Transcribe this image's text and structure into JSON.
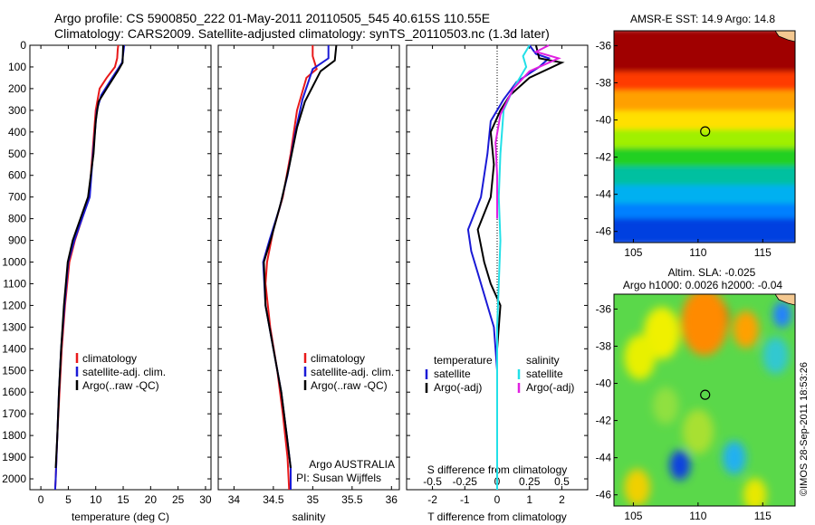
{
  "header": {
    "line1": "Argo profile: CS 5900850_222 01-May-2011 20110505_545 40.615S 110.55E",
    "line2": "Climatology: CARS2009. Satellite-adjusted climatology: synTS_20110503.nc (1.3d later)"
  },
  "footer_right": "©IMOS 28-Sep-2011 18:53:26",
  "colors": {
    "climatology": "#e8191a",
    "satellite": "#1a1ad6",
    "argo": "#000000",
    "cyan": "#22e0e8",
    "magenta": "#e020e0"
  },
  "chart_data": [
    {
      "type": "line",
      "id": "temperature",
      "xlabel": "temperature (deg C)",
      "ylabel": "",
      "xlim": [
        -2,
        31
      ],
      "xticks": [
        0,
        5,
        10,
        15,
        20,
        25,
        30
      ],
      "ylim": [
        2050,
        0
      ],
      "yticks": [
        0,
        100,
        200,
        300,
        400,
        500,
        600,
        700,
        800,
        900,
        1000,
        1100,
        1200,
        1300,
        1400,
        1500,
        1600,
        1700,
        1800,
        1900,
        2000
      ],
      "y_reversed": true,
      "legend": {
        "position": "lower-middle",
        "entries": [
          "climatology",
          "satellite-adj. clim.",
          "Argo(..raw -QC)"
        ]
      },
      "series": [
        {
          "name": "climatology",
          "color": "#e8191a",
          "points": [
            [
              14.1,
              0
            ],
            [
              14.0,
              20
            ],
            [
              13.9,
              60
            ],
            [
              13.5,
              100
            ],
            [
              12.0,
              150
            ],
            [
              10.7,
              200
            ],
            [
              10.0,
              300
            ],
            [
              9.4,
              500
            ],
            [
              8.8,
              700
            ],
            [
              7.5,
              800
            ],
            [
              6.2,
              900
            ],
            [
              5.2,
              1000
            ],
            [
              4.4,
              1200
            ],
            [
              3.8,
              1400
            ],
            [
              3.4,
              1600
            ],
            [
              3.0,
              1800
            ],
            [
              2.7,
              2000
            ],
            [
              2.6,
              2050
            ]
          ]
        },
        {
          "name": "satellite-adj. clim.",
          "color": "#1a1ad6",
          "points": [
            [
              15.2,
              0
            ],
            [
              15.0,
              40
            ],
            [
              14.8,
              80
            ],
            [
              13.0,
              150
            ],
            [
              11.0,
              230
            ],
            [
              10.2,
              300
            ],
            [
              9.5,
              500
            ],
            [
              8.9,
              700
            ],
            [
              7.5,
              800
            ],
            [
              6.1,
              900
            ],
            [
              5.0,
              1000
            ],
            [
              4.3,
              1200
            ],
            [
              3.7,
              1400
            ],
            [
              3.3,
              1600
            ],
            [
              3.0,
              1800
            ],
            [
              2.7,
              2000
            ],
            [
              2.6,
              2050
            ]
          ]
        },
        {
          "name": "Argo(..raw -QC)",
          "color": "#000000",
          "points": [
            [
              15.0,
              0
            ],
            [
              14.9,
              80
            ],
            [
              14.0,
              120
            ],
            [
              12.0,
              200
            ],
            [
              10.5,
              260
            ],
            [
              10.0,
              350
            ],
            [
              9.6,
              500
            ],
            [
              8.6,
              700
            ],
            [
              7.2,
              800
            ],
            [
              5.8,
              900
            ],
            [
              4.9,
              1000
            ],
            [
              4.2,
              1200
            ],
            [
              3.7,
              1400
            ],
            [
              3.3,
              1600
            ],
            [
              3.0,
              1800
            ],
            [
              2.7,
              1950
            ]
          ]
        }
      ]
    },
    {
      "type": "line",
      "id": "salinity",
      "xlabel": "salinity",
      "ylabel": "",
      "xlim": [
        33.8,
        36.1
      ],
      "xticks": [
        34,
        34.5,
        35,
        35.5,
        36
      ],
      "ylim": [
        2050,
        0
      ],
      "y_reversed": true,
      "legend": {
        "position": "lower-right",
        "entries": [
          "climatology",
          "satellite-adj. clim.",
          "Argo(..raw -QC)"
        ]
      },
      "annotations": [
        "Argo AUSTRALIA",
        "PI: Susan Wijffels"
      ],
      "series": [
        {
          "name": "climatology",
          "color": "#e8191a",
          "points": [
            [
              35.0,
              0
            ],
            [
              35.0,
              50
            ],
            [
              35.05,
              110
            ],
            [
              34.92,
              150
            ],
            [
              34.8,
              300
            ],
            [
              34.72,
              500
            ],
            [
              34.62,
              700
            ],
            [
              34.5,
              850
            ],
            [
              34.42,
              1000
            ],
            [
              34.4,
              1100
            ],
            [
              34.46,
              1300
            ],
            [
              34.55,
              1500
            ],
            [
              34.62,
              1700
            ],
            [
              34.68,
              1900
            ],
            [
              34.7,
              2050
            ]
          ]
        },
        {
          "name": "satellite-adj. clim.",
          "color": "#1a1ad6",
          "points": [
            [
              35.2,
              0
            ],
            [
              35.2,
              60
            ],
            [
              35.0,
              110
            ],
            [
              34.87,
              250
            ],
            [
              34.78,
              400
            ],
            [
              34.68,
              600
            ],
            [
              34.58,
              750
            ],
            [
              34.45,
              900
            ],
            [
              34.37,
              1000
            ],
            [
              34.4,
              1200
            ],
            [
              34.5,
              1400
            ],
            [
              34.6,
              1600
            ],
            [
              34.67,
              1800
            ],
            [
              34.72,
              1950
            ],
            [
              34.72,
              2050
            ]
          ]
        },
        {
          "name": "Argo(..raw -QC)",
          "color": "#000000",
          "points": [
            [
              35.3,
              0
            ],
            [
              35.28,
              70
            ],
            [
              35.1,
              120
            ],
            [
              34.9,
              260
            ],
            [
              34.8,
              380
            ],
            [
              34.7,
              560
            ],
            [
              34.6,
              720
            ],
            [
              34.48,
              880
            ],
            [
              34.38,
              1000
            ],
            [
              34.4,
              1200
            ],
            [
              34.5,
              1400
            ],
            [
              34.6,
              1600
            ],
            [
              34.67,
              1800
            ],
            [
              34.72,
              1950
            ]
          ]
        }
      ]
    },
    {
      "type": "line",
      "id": "difference",
      "xlabel": "T difference from climatology",
      "xlabel_top": "S difference from climatology",
      "xlim": [
        -2.8,
        2.8
      ],
      "xticks": [
        -2,
        -1,
        0,
        1,
        2
      ],
      "xticks_top_labels": [
        "-0.5",
        "-0.25",
        "0",
        "0.25",
        "0.5"
      ],
      "xticks_top_values": [
        -2,
        -1,
        0,
        1,
        2
      ],
      "ylim": [
        2050,
        0
      ],
      "y_reversed": true,
      "legend": {
        "position": "lower",
        "temperature_title": "temperature",
        "salinity_title": "salinity",
        "entries": [
          "satellite",
          "Argo(-adj)",
          "satellite",
          "Argo(-adj)"
        ]
      },
      "series": [
        {
          "name": "satellite",
          "group": "temperature",
          "color": "#1a1ad6",
          "points": [
            [
              1.0,
              0
            ],
            [
              1.2,
              40
            ],
            [
              1.6,
              60
            ],
            [
              1.3,
              100
            ],
            [
              0.6,
              170
            ],
            [
              0.2,
              250
            ],
            [
              -0.2,
              350
            ],
            [
              -0.3,
              500
            ],
            [
              -0.5,
              700
            ],
            [
              -0.9,
              850
            ],
            [
              -0.8,
              950
            ],
            [
              -0.6,
              1050
            ],
            [
              -0.4,
              1150
            ],
            [
              -0.1,
              1300
            ],
            [
              0,
              1500
            ],
            [
              0,
              2050
            ]
          ]
        },
        {
          "name": "Argo(-adj)",
          "group": "temperature",
          "color": "#000000",
          "points": [
            [
              1.2,
              0
            ],
            [
              1.3,
              60
            ],
            [
              2.0,
              80
            ],
            [
              1.0,
              150
            ],
            [
              0.4,
              230
            ],
            [
              0.1,
              300
            ],
            [
              -0.2,
              400
            ],
            [
              -0.1,
              550
            ],
            [
              -0.2,
              700
            ],
            [
              -0.6,
              850
            ],
            [
              -0.4,
              1000
            ],
            [
              -0.2,
              1100
            ],
            [
              0.1,
              1200
            ],
            [
              0,
              1400
            ],
            [
              0,
              1950
            ]
          ]
        },
        {
          "name": "satellite",
          "group": "salinity",
          "color": "#22e0e8",
          "points": [
            [
              1.0,
              0
            ],
            [
              0.8,
              50
            ],
            [
              0.9,
              100
            ],
            [
              0.5,
              200
            ],
            [
              0.2,
              300
            ],
            [
              0.1,
              500
            ],
            [
              0.05,
              700
            ],
            [
              0.1,
              900
            ],
            [
              0.05,
              1100
            ],
            [
              0,
              1300
            ],
            [
              0,
              2050
            ]
          ]
        },
        {
          "name": "Argo(-adj)",
          "group": "salinity",
          "color": "#e020e0",
          "points": [
            [
              1.6,
              0
            ],
            [
              1.2,
              30
            ],
            [
              1.9,
              60
            ],
            [
              1.0,
              120
            ],
            [
              0.5,
              200
            ],
            [
              0.1,
              320
            ],
            [
              -0.05,
              450
            ],
            [
              0,
              600
            ],
            [
              0,
              800
            ]
          ]
        }
      ]
    },
    {
      "type": "heatmap",
      "id": "sst-map",
      "title": "AMSR-E SST: 14.9 Argo: 14.8",
      "xlim": [
        103.5,
        117.5
      ],
      "xticks": [
        105,
        110,
        115
      ],
      "ylim": [
        -46.6,
        -35.2
      ],
      "yticks": [
        -36,
        -38,
        -40,
        -42,
        -44,
        -46
      ],
      "marker": [
        110.55,
        -40.615
      ],
      "colormap": "jet",
      "bands": [
        {
          "lat_top": -35.2,
          "lat_bottom": -37.5,
          "color": "#a00000"
        },
        {
          "lat_top": -37.5,
          "lat_bottom": -38.5,
          "color": "#ff3a00"
        },
        {
          "lat_top": -38.5,
          "lat_bottom": -39.6,
          "color": "#ffa000"
        },
        {
          "lat_top": -39.6,
          "lat_bottom": -40.6,
          "color": "#ffe000"
        },
        {
          "lat_top": -40.6,
          "lat_bottom": -41.6,
          "color": "#a0f000"
        },
        {
          "lat_top": -41.6,
          "lat_bottom": -42.6,
          "color": "#20d020"
        },
        {
          "lat_top": -42.6,
          "lat_bottom": -43.6,
          "color": "#00c0a0"
        },
        {
          "lat_top": -43.6,
          "lat_bottom": -44.6,
          "color": "#00b0f0"
        },
        {
          "lat_top": -44.6,
          "lat_bottom": -45.4,
          "color": "#0080ff"
        },
        {
          "lat_top": -45.4,
          "lat_bottom": -46.6,
          "color": "#0040e0"
        }
      ]
    },
    {
      "type": "heatmap",
      "id": "sla-map",
      "title": "Altim. SLA: -0.025",
      "subtitle": "Argo h1000: 0.0026 h2000: -0.04",
      "xlim": [
        103.5,
        117.5
      ],
      "xticks": [
        105,
        110,
        115
      ],
      "ylim": [
        -46.6,
        -35.2
      ],
      "yticks": [
        -36,
        -38,
        -40,
        -42,
        -44,
        -46
      ],
      "marker": [
        110.55,
        -40.615
      ],
      "colormap": "jet",
      "background": "#5ad84a",
      "blobs": [
        {
          "lon": 111.4,
          "lat": -36.5,
          "r": 1.0,
          "color": "#a01010"
        },
        {
          "lon": 110.5,
          "lat": -36.7,
          "r": 1.8,
          "color": "#ff8a00"
        },
        {
          "lon": 113.7,
          "lat": -37.1,
          "r": 1.0,
          "color": "#ffa000"
        },
        {
          "lon": 107.2,
          "lat": -37.3,
          "r": 1.4,
          "color": "#f0f000"
        },
        {
          "lon": 105.5,
          "lat": -38.6,
          "r": 1.2,
          "color": "#e8f000"
        },
        {
          "lon": 116.5,
          "lat": -36.3,
          "r": 0.7,
          "color": "#2080ff"
        },
        {
          "lon": 116.0,
          "lat": -38.5,
          "r": 1.0,
          "color": "#30c8d0"
        },
        {
          "lon": 108.6,
          "lat": -44.4,
          "r": 0.8,
          "color": "#1040e0"
        },
        {
          "lon": 112.8,
          "lat": -44.0,
          "r": 0.9,
          "color": "#20b0f0"
        },
        {
          "lon": 105.3,
          "lat": -45.6,
          "r": 1.0,
          "color": "#f0d000"
        },
        {
          "lon": 114.4,
          "lat": -46.0,
          "r": 0.9,
          "color": "#e8e800"
        },
        {
          "lon": 110.0,
          "lat": -42.6,
          "r": 1.2,
          "color": "#a8e030"
        },
        {
          "lon": 107.5,
          "lat": -41.2,
          "r": 1.0,
          "color": "#90e040"
        }
      ]
    }
  ]
}
